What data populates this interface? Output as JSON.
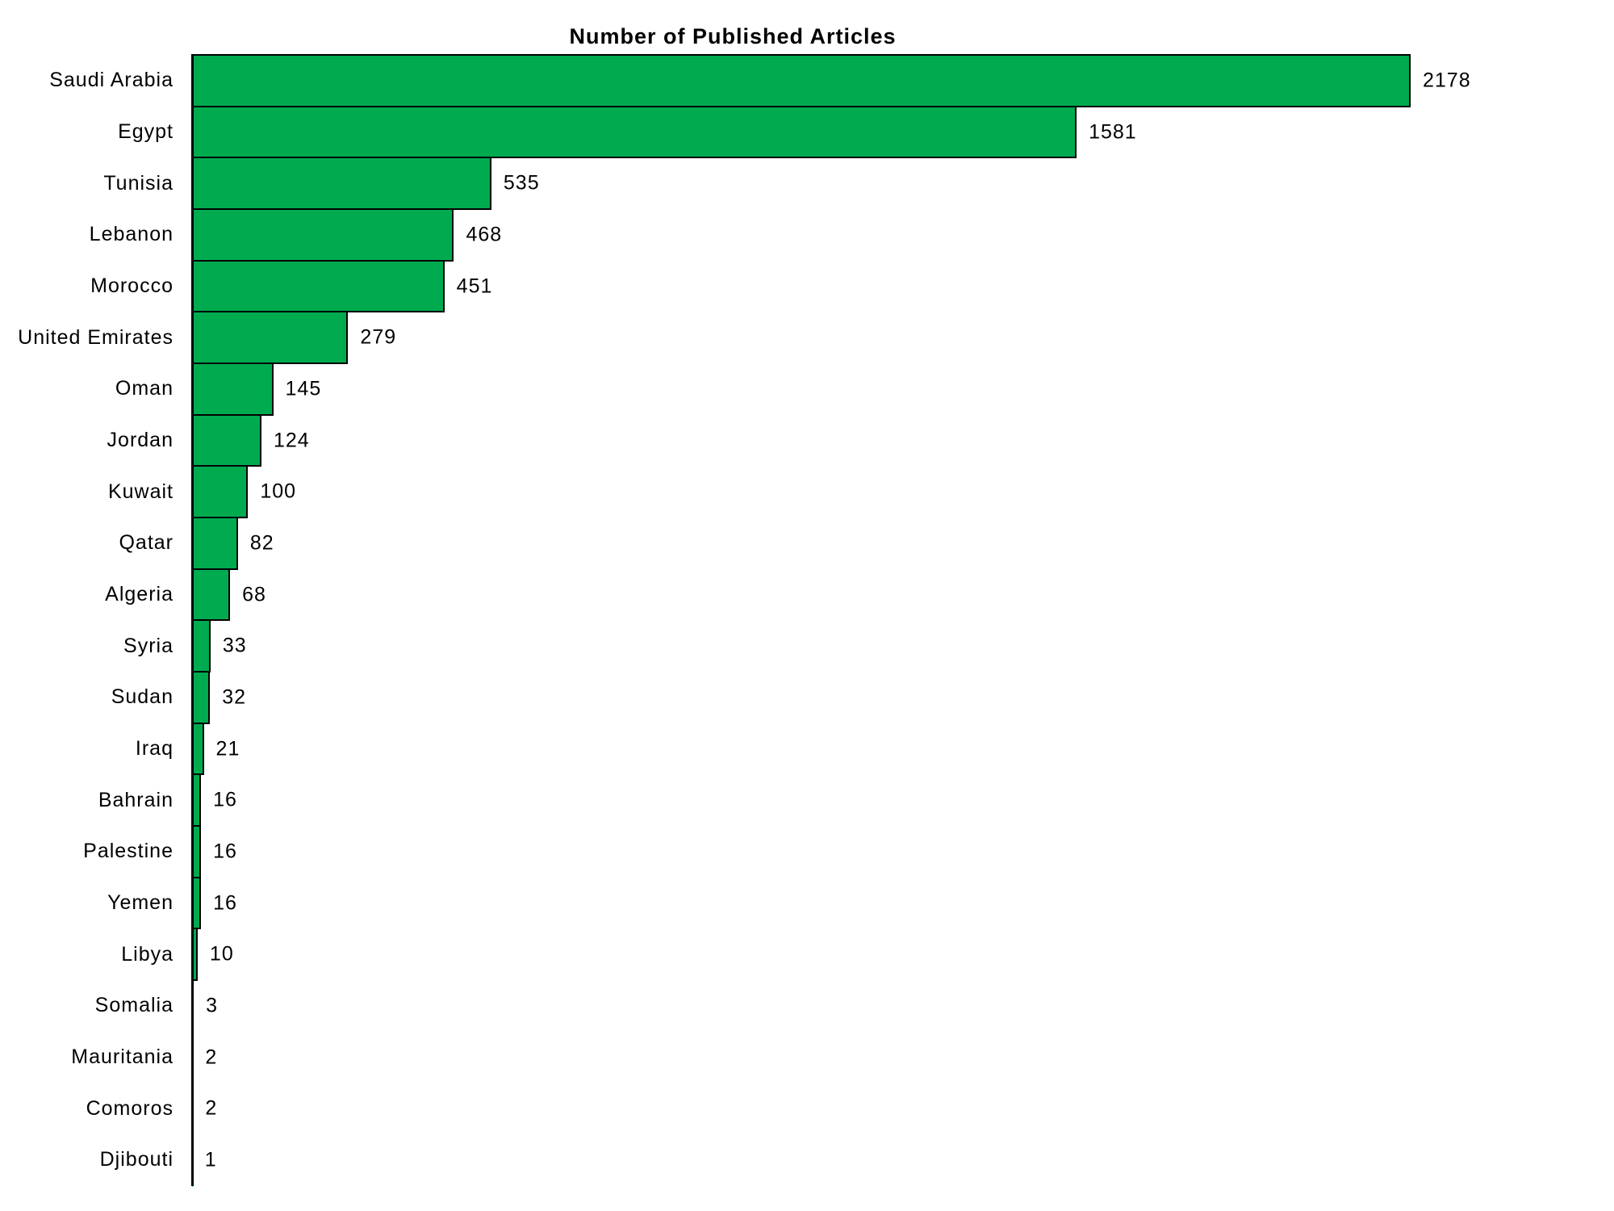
{
  "colors": {
    "background": "#ffffff",
    "bar_fill": "#00ab50",
    "bar_border": "#000000",
    "axis_line": "#000000",
    "text": "#000000"
  },
  "chart_data": {
    "type": "bar",
    "orientation": "horizontal",
    "title": "Number of Published Articles",
    "categories": [
      "Saudi Arabia",
      "Egypt",
      "Tunisia",
      "Lebanon",
      "Morocco",
      "United Emirates",
      "Oman",
      "Jordan",
      "Kuwait",
      "Qatar",
      "Algeria",
      "Syria",
      "Sudan",
      "Iraq",
      "Bahrain",
      "Palestine",
      "Yemen",
      "Libya",
      "Somalia",
      "Mauritania",
      "Comoros",
      "Djibouti"
    ],
    "values": [
      2178,
      1581,
      535,
      468,
      451,
      279,
      145,
      124,
      100,
      82,
      68,
      33,
      32,
      21,
      16,
      16,
      16,
      10,
      3,
      2,
      2,
      1
    ],
    "xlim": [
      0,
      2178
    ],
    "value_labels": "end-of-bar",
    "grid": "off",
    "legend": "none",
    "xlabel": "",
    "ylabel": ""
  }
}
